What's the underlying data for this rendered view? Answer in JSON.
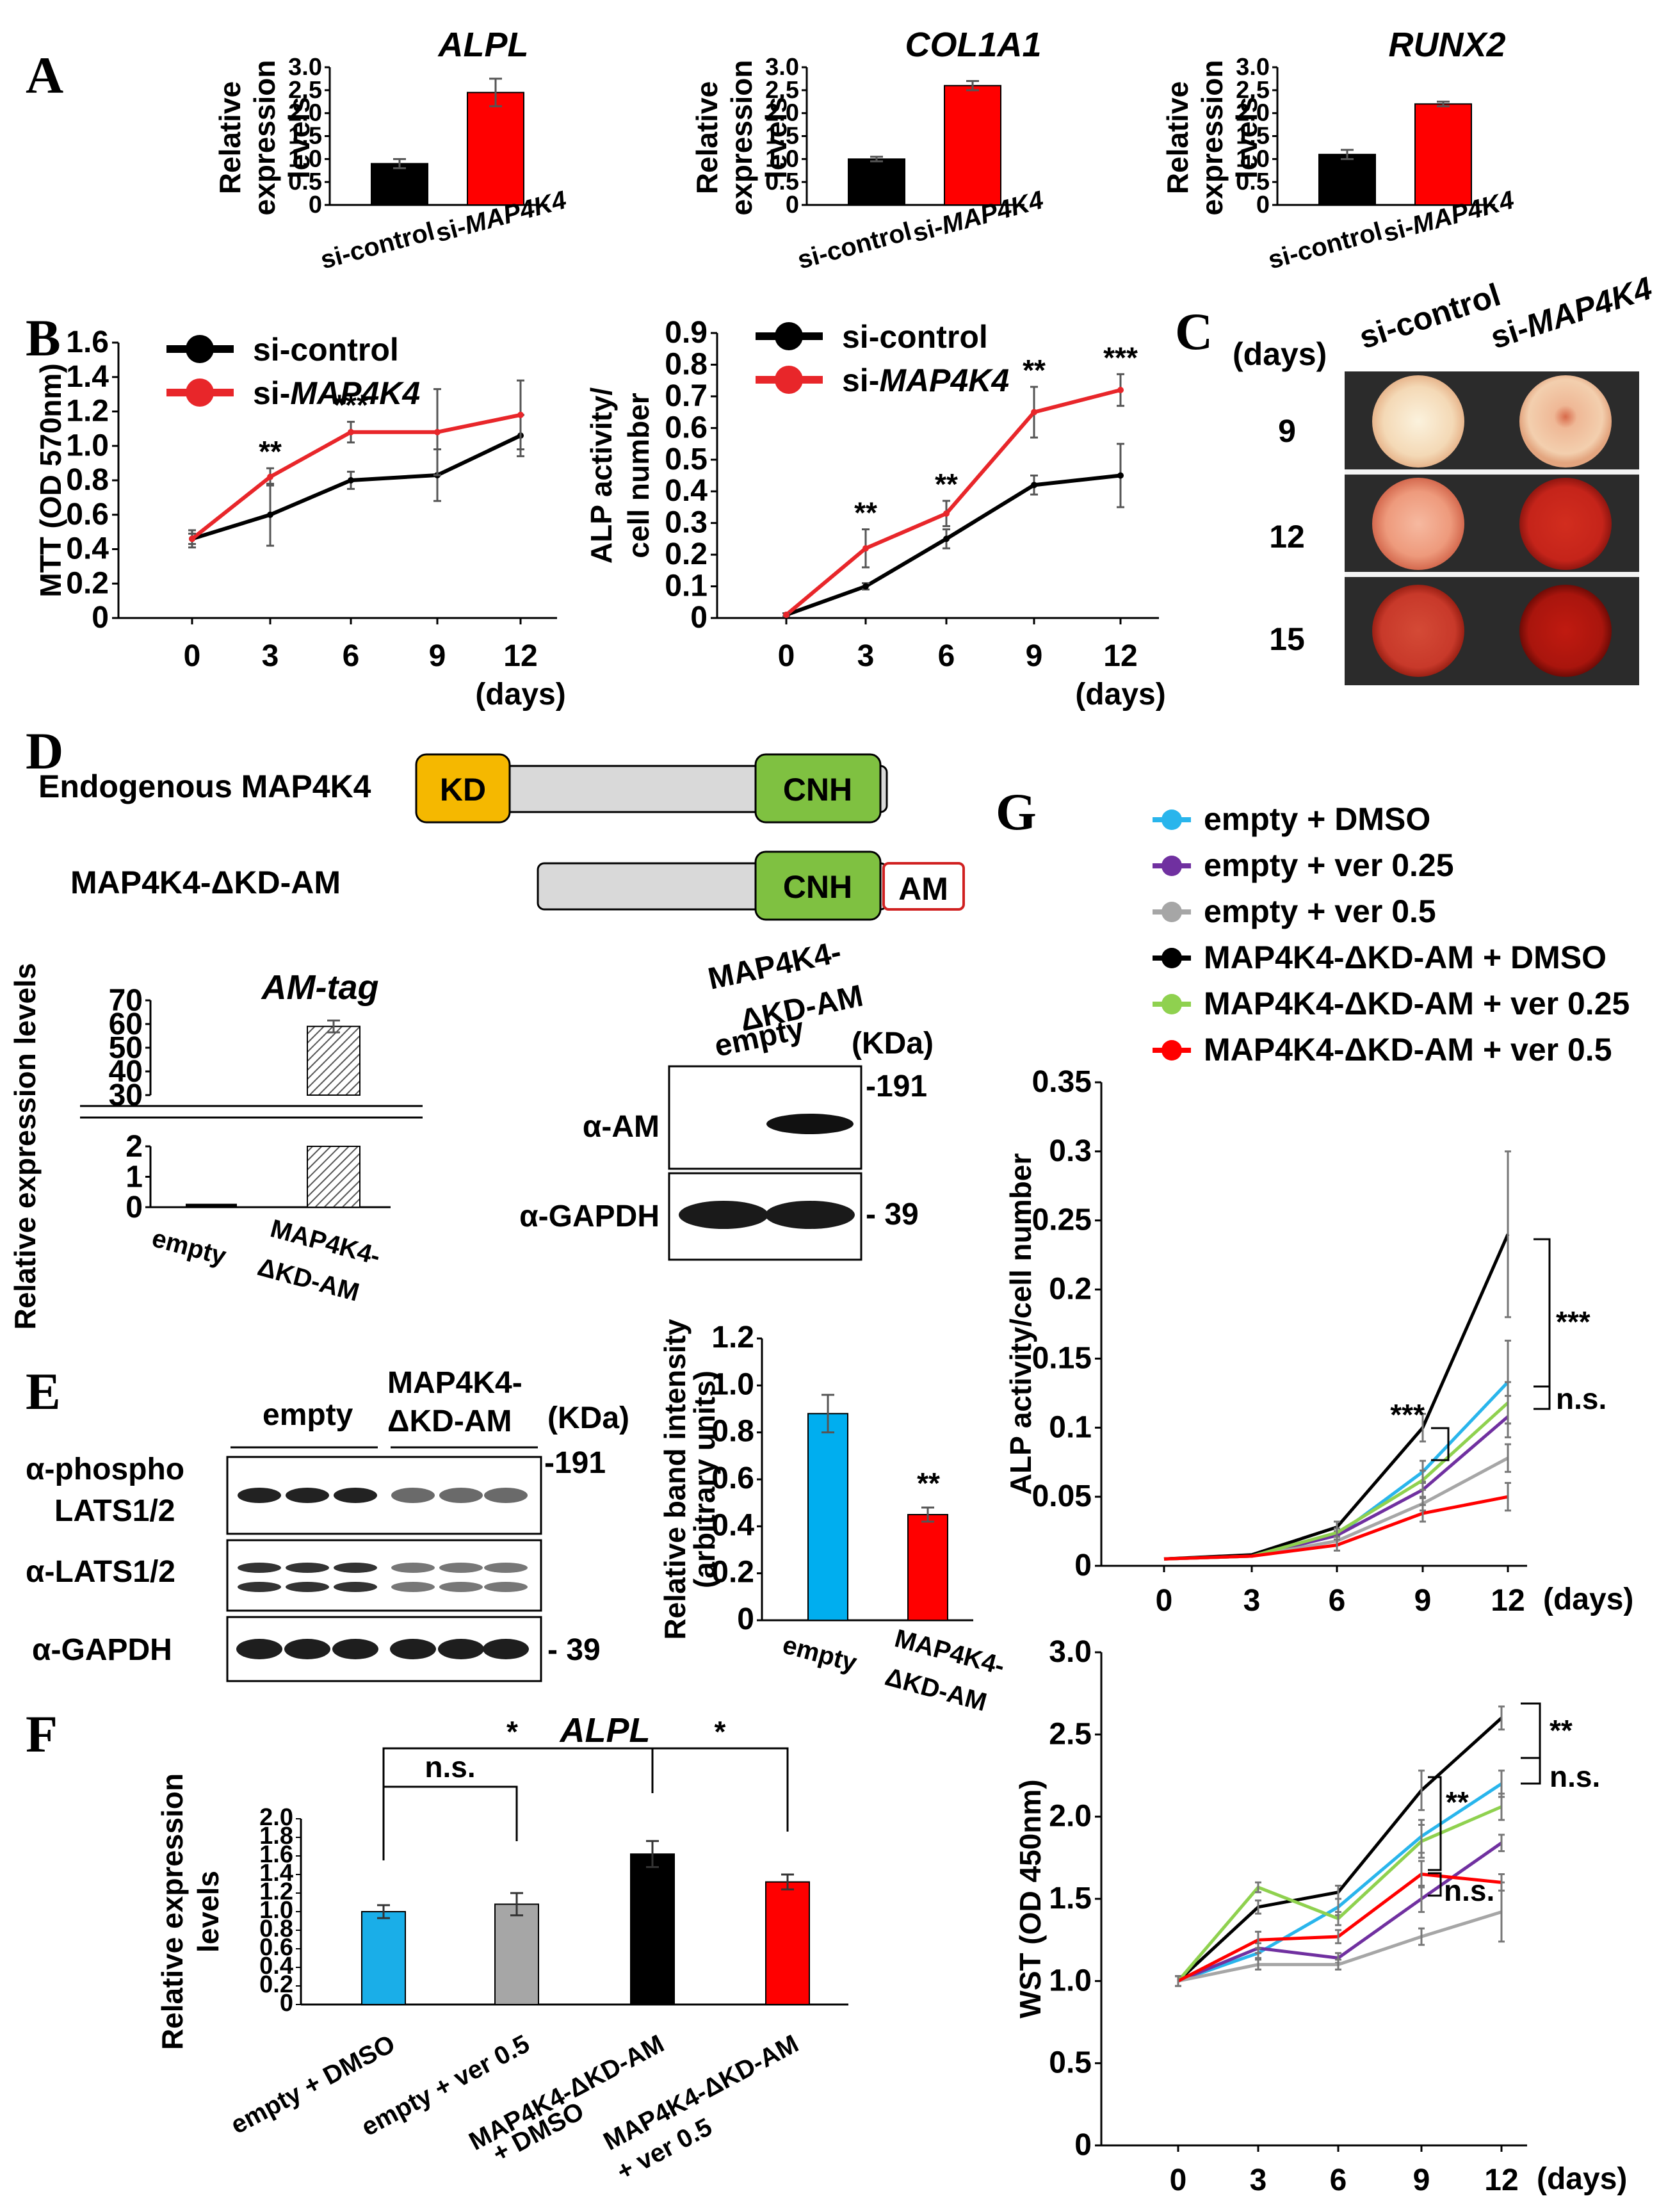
{
  "panels": {
    "A": "A",
    "B": "B",
    "C": "C",
    "D": "D",
    "E": "E",
    "F": "F",
    "G": "G"
  },
  "panel_a": {
    "ylabel_line1": "Relative",
    "ylabel_line2": "expression",
    "ylabel_line3": "levels",
    "yticks": [
      "0",
      "0.5",
      "1.0",
      "1.5",
      "2.0",
      "2.5",
      "3.0"
    ],
    "categories": [
      "si-control",
      "si-MAP4K4"
    ],
    "colors": [
      "#000000",
      "#ff0000"
    ]
  },
  "panel_b": {
    "xticks": [
      "0",
      "3",
      "6",
      "9",
      "12"
    ],
    "xunit": "(days)",
    "legend": [
      "si-control",
      "si-MAP4K4"
    ],
    "mtt_ylabel": "MTT (OD 570nm)",
    "mtt_yticks": [
      "0",
      "0.2",
      "0.4",
      "0.6",
      "0.8",
      "1.0",
      "1.2",
      "1.4",
      "1.6"
    ],
    "alp_ylabel_line1": "ALP activity/",
    "alp_ylabel_line2": "cell number",
    "alp_yticks": [
      "0",
      "0.1",
      "0.2",
      "0.3",
      "0.4",
      "0.5",
      "0.6",
      "0.7",
      "0.8",
      "0.9"
    ],
    "colors": {
      "control": "#000000",
      "treated": "#e8262a"
    }
  },
  "panel_c": {
    "header_days": "(days)",
    "col_labels": [
      "si-control",
      "si-MAP4K4"
    ],
    "row_labels": [
      "9",
      "12",
      "15"
    ]
  },
  "panel_d": {
    "row1_label": "Endogenous MAP4K4",
    "row2_label": "MAP4K4-ΔKD-AM",
    "domain_kd": "KD",
    "domain_cnh": "CNH",
    "domain_am": "AM",
    "bar_title": "AM-tag",
    "bar_ylabel": "Relative expression levels",
    "bar_yticks_low": [
      "0",
      "1",
      "2"
    ],
    "bar_yticks_high": [
      "30",
      "40",
      "50",
      "60",
      "70"
    ],
    "bar_categories": [
      "empty",
      "MAP4K4-",
      "ΔKD-AM"
    ],
    "blot_lane_empty": "empty",
    "blot_lane_mut_line1": "MAP4K4-",
    "blot_lane_mut_line2": "ΔKD-AM",
    "blot_kda": "(KDa)",
    "blot_row1": "α-AM",
    "blot_row2": "α-GAPDH",
    "blot_mw1": "-191",
    "blot_mw2": "- 39"
  },
  "panel_e": {
    "group_empty": "empty",
    "group_mut_line1": "MAP4K4-",
    "group_mut_line2": "ΔKD-AM",
    "kda": "(KDa)",
    "row1_line1": "α-phospho",
    "row1_line2": "LATS1/2",
    "row2": "α-LATS1/2",
    "row3": "α-GAPDH",
    "mw1": "-191",
    "mw2": "- 39",
    "bar_ylabel_line1": "Relative band intensity",
    "bar_ylabel_line2": "(arbitrary units)",
    "bar_yticks": [
      "0",
      "0.2",
      "0.4",
      "0.6",
      "0.8",
      "1.0",
      "1.2"
    ],
    "bar_categories": [
      "empty",
      "MAP4K4-",
      "ΔKD-AM"
    ],
    "sig": "**",
    "colors": [
      "#00aeef",
      "#ff0000"
    ]
  },
  "panel_f": {
    "title": "ALPL",
    "ylabel_line1": "Relative  expression",
    "ylabel_line2": "levels",
    "yticks": [
      "0",
      "0.2",
      "0.4",
      "0.6",
      "0.8",
      "1.0",
      "1.2",
      "1.4",
      "1.6",
      "1.8",
      "2.0"
    ],
    "categories": [
      "empty + DMSO",
      "empty + ver 0.5",
      "MAP4K4-ΔKD-AM",
      "+ DMSO",
      "MAP4K4-ΔKD-AM",
      "+ ver 0.5"
    ],
    "sig_ns": "n.s.",
    "sig_star1": "*",
    "sig_star2": "*",
    "colors": [
      "#1aaee8",
      "#a6a6a6",
      "#000000",
      "#ff0000"
    ]
  },
  "panel_g": {
    "legend": [
      "empty + DMSO",
      "empty + ver 0.25",
      "empty + ver 0.5",
      "MAP4K4-ΔKD-AM  + DMSO",
      "MAP4K4-ΔKD-AM  + ver 0.25",
      "MAP4K4-ΔKD-AM  + ver 0.5"
    ],
    "colors": [
      "#29b5ec",
      "#7030a0",
      "#a6a6a6",
      "#000000",
      "#8fd14f",
      "#ff0000"
    ],
    "xticks": [
      "0",
      "3",
      "6",
      "9",
      "12"
    ],
    "xunit": "(days)",
    "alp_ylabel": "ALP activity/cell number",
    "alp_yticks": [
      "0",
      "0.05",
      "0.1",
      "0.15",
      "0.2",
      "0.25",
      "0.3",
      "0.35"
    ],
    "alp_sig_a": "***",
    "alp_sig_b": "***",
    "alp_sig_ns": "n.s.",
    "wst_ylabel": "WST (OD 450nm)",
    "wst_yticks": [
      "0",
      "0.5",
      "1.0",
      "1.5",
      "2.0",
      "2.5",
      "3.0"
    ],
    "wst_sig_a": "**",
    "wst_sig_b": "**",
    "wst_sig_ns1": "n.s.",
    "wst_sig_ns2": "n.s."
  },
  "chart_data": [
    {
      "type": "bar",
      "title": "ALPL",
      "categories": [
        "si-control",
        "si-MAP4K4"
      ],
      "values": [
        0.9,
        2.45
      ],
      "errors": [
        0.1,
        0.3
      ],
      "ylim": [
        0,
        3.0
      ]
    },
    {
      "type": "bar",
      "title": "COL1A1",
      "categories": [
        "si-control",
        "si-MAP4K4"
      ],
      "values": [
        1.0,
        2.6
      ],
      "errors": [
        0.05,
        0.1
      ],
      "ylim": [
        0,
        3.0
      ]
    },
    {
      "type": "bar",
      "title": "RUNX2",
      "categories": [
        "si-control",
        "si-MAP4K4"
      ],
      "values": [
        1.1,
        2.2
      ],
      "errors": [
        0.1,
        0.05
      ],
      "ylim": [
        0,
        3.0
      ]
    },
    {
      "type": "line",
      "ylabel": "MTT (OD 570nm)",
      "x": [
        0,
        3,
        6,
        9,
        12
      ],
      "ylim": [
        0,
        1.6
      ],
      "series": [
        {
          "name": "si-control",
          "values": [
            0.46,
            0.6,
            0.8,
            0.83,
            1.06
          ],
          "errors": [
            0.05,
            0.18,
            0.05,
            0.15,
            0.12
          ]
        },
        {
          "name": "si-MAP4K4",
          "values": [
            0.46,
            0.82,
            1.08,
            1.08,
            1.18
          ],
          "errors": [
            0.03,
            0.05,
            0.06,
            0.25,
            0.2
          ]
        }
      ],
      "annotations": [
        {
          "x": 3,
          "text": "**"
        },
        {
          "x": 6,
          "text": "***"
        }
      ]
    },
    {
      "type": "line",
      "ylabel": "ALP activity/ cell number",
      "x": [
        0,
        3,
        6,
        9,
        12
      ],
      "ylim": [
        0,
        0.9
      ],
      "series": [
        {
          "name": "si-control",
          "values": [
            0.01,
            0.1,
            0.25,
            0.42,
            0.45
          ],
          "errors": [
            0.005,
            0.01,
            0.03,
            0.03,
            0.1
          ]
        },
        {
          "name": "si-MAP4K4",
          "values": [
            0.01,
            0.22,
            0.33,
            0.65,
            0.72
          ],
          "errors": [
            0.005,
            0.06,
            0.04,
            0.08,
            0.05
          ]
        }
      ],
      "annotations": [
        {
          "x": 3,
          "text": "**"
        },
        {
          "x": 6,
          "text": "**"
        },
        {
          "x": 9,
          "text": "**"
        },
        {
          "x": 12,
          "text": "***"
        }
      ]
    },
    {
      "type": "bar",
      "title": "AM-tag",
      "ylabel": "Relative expression levels",
      "categories": [
        "empty",
        "MAP4K4-ΔKD-AM"
      ],
      "values": [
        0.05,
        59
      ],
      "errors": [
        0,
        2.5
      ]
    },
    {
      "type": "bar",
      "ylabel": "Relative band intensity (arbitrary units)",
      "categories": [
        "empty",
        "MAP4K4-ΔKD-AM"
      ],
      "values": [
        0.88,
        0.45
      ],
      "errors": [
        0.08,
        0.03
      ],
      "ylim": [
        0,
        1.2
      ],
      "annotations": [
        {
          "category": "MAP4K4-ΔKD-AM",
          "text": "**"
        }
      ]
    },
    {
      "type": "bar",
      "title": "ALPL",
      "ylabel": "Relative expression levels",
      "categories": [
        "empty + DMSO",
        "empty + ver 0.5",
        "MAP4K4-ΔKD-AM + DMSO",
        "MAP4K4-ΔKD-AM + ver 0.5"
      ],
      "values": [
        1.0,
        1.08,
        1.62,
        1.32
      ],
      "errors": [
        0.07,
        0.12,
        0.14,
        0.08
      ],
      "ylim": [
        0,
        2.0
      ]
    },
    {
      "type": "line",
      "ylabel": "ALP activity/cell number",
      "x": [
        0,
        3,
        6,
        9,
        12
      ],
      "ylim": [
        0,
        0.35
      ],
      "series": [
        {
          "name": "empty + DMSO",
          "values": [
            0.005,
            0.007,
            0.022,
            0.068,
            0.133
          ],
          "errors": [
            0,
            0,
            0.003,
            0.008,
            0.03
          ]
        },
        {
          "name": "empty + ver 0.25",
          "values": [
            0.005,
            0.007,
            0.022,
            0.055,
            0.108
          ],
          "errors": [
            0,
            0,
            0.003,
            0.006,
            0.015
          ]
        },
        {
          "name": "empty + ver 0.5",
          "values": [
            0.005,
            0.007,
            0.018,
            0.045,
            0.078
          ],
          "errors": [
            0,
            0,
            0.003,
            0.005,
            0.01
          ]
        },
        {
          "name": "MAP4K4-ΔKD-AM + DMSO",
          "values": [
            0.005,
            0.008,
            0.028,
            0.1,
            0.24
          ],
          "errors": [
            0,
            0,
            0.004,
            0.01,
            0.06
          ]
        },
        {
          "name": "MAP4K4-ΔKD-AM + ver 0.25",
          "values": [
            0.005,
            0.007,
            0.024,
            0.062,
            0.118
          ],
          "errors": [
            0,
            0,
            0.003,
            0.007,
            0.015
          ]
        },
        {
          "name": "MAP4K4-ΔKD-AM + ver 0.5",
          "values": [
            0.005,
            0.007,
            0.015,
            0.038,
            0.05
          ],
          "errors": [
            0,
            0,
            0.004,
            0.006,
            0.01
          ]
        }
      ],
      "annotations": [
        {
          "x": 9,
          "text": "***"
        },
        {
          "x": 12,
          "text": "***"
        },
        {
          "x": 12,
          "text": "n.s."
        }
      ]
    },
    {
      "type": "line",
      "ylabel": "WST (OD 450nm)",
      "x": [
        0,
        3,
        6,
        9,
        12
      ],
      "ylim": [
        0,
        3.0
      ],
      "series": [
        {
          "name": "empty + DMSO",
          "values": [
            1.0,
            1.17,
            1.45,
            1.88,
            2.2
          ],
          "errors": [
            0.03,
            0.03,
            0.05,
            0.1,
            0.08
          ]
        },
        {
          "name": "empty + ver 0.25",
          "values": [
            1.0,
            1.2,
            1.14,
            1.5,
            1.84
          ],
          "errors": [
            0.03,
            0.03,
            0.03,
            0.08,
            0.05
          ]
        },
        {
          "name": "empty + ver 0.5",
          "values": [
            1.0,
            1.1,
            1.1,
            1.27,
            1.42
          ],
          "errors": [
            0.03,
            0.03,
            0.03,
            0.05,
            0.18
          ]
        },
        {
          "name": "MAP4K4-ΔKD-AM + DMSO",
          "values": [
            1.0,
            1.45,
            1.54,
            2.16,
            2.6
          ],
          "errors": [
            0.03,
            0.04,
            0.04,
            0.12,
            0.07
          ]
        },
        {
          "name": "MAP4K4-ΔKD-AM + ver 0.25",
          "values": [
            1.0,
            1.57,
            1.38,
            1.85,
            2.06
          ],
          "errors": [
            0.03,
            0.03,
            0.04,
            0.1,
            0.08
          ]
        },
        {
          "name": "MAP4K4-ΔKD-AM + ver 0.5",
          "values": [
            1.0,
            1.25,
            1.27,
            1.65,
            1.6
          ],
          "errors": [
            0.03,
            0.05,
            0.04,
            0.08,
            0.05
          ]
        }
      ],
      "annotations": [
        {
          "x": 9,
          "text": "**"
        },
        {
          "x": 9,
          "text": "n.s."
        },
        {
          "x": 12,
          "text": "**"
        },
        {
          "x": 12,
          "text": "n.s."
        }
      ]
    }
  ]
}
